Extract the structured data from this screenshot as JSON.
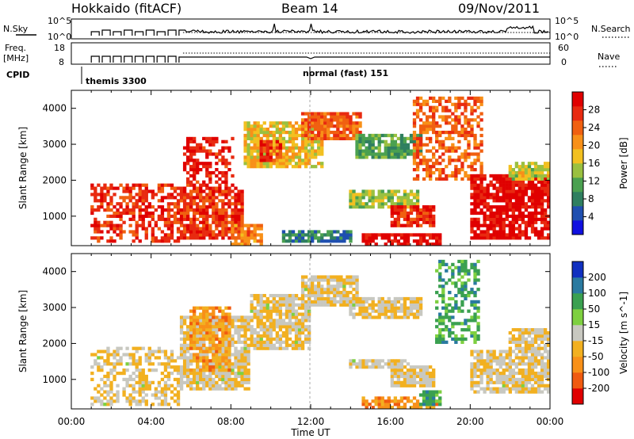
{
  "header": {
    "station": "Hokkaido (fitACF)",
    "beam": "Beam 14",
    "date": "09/Nov/2011"
  },
  "summary_panels": {
    "nsky_label": "N.Sky",
    "nsky_tick_high": "10^5",
    "nsky_tick_low": "10^0",
    "nsearch_tick_high": "10^5",
    "nsearch_tick_low": "10^0",
    "nsearch_label": "N.Search",
    "freq_label_line1": "Freq.",
    "freq_label_line2": "[MHz]",
    "freq_tick_high": "18",
    "freq_tick_low": "8",
    "nave_tick_high": "60",
    "nave_tick_low": "0",
    "nave_label": "Nave",
    "cpid_label": "CPID",
    "cpid_modes": [
      {
        "name": "themis 3300",
        "start_hour": 1.0
      },
      {
        "name": "normal (fast) 151",
        "start_hour": 12.0
      }
    ]
  },
  "chart_data": [
    {
      "type": "heatmap",
      "title": "",
      "ylabel": "Slant Range [km]",
      "xlabel": "",
      "ylim": [
        180,
        4500
      ],
      "yticks": [
        1000,
        2000,
        3000,
        4000
      ],
      "xlim": [
        0,
        24
      ],
      "colorbar": {
        "label": "Power [dB]",
        "range": [
          0,
          32
        ],
        "ticks": [
          "4",
          "8",
          "12",
          "16",
          "20",
          "24",
          "28"
        ],
        "colors": [
          "#1010e0",
          "#1f4fb0",
          "#2f7f60",
          "#4aa050",
          "#9ac040",
          "#f2c020",
          "#f89018",
          "#f06010",
          "#e82a10",
          "#e00000"
        ]
      },
      "features": [
        {
          "t0": 1.0,
          "t1": 5.4,
          "r0": 300,
          "r1": 1900,
          "level": 0.85,
          "sparse": 0.55
        },
        {
          "t0": 5.4,
          "t1": 8.6,
          "r0": 350,
          "r1": 1800,
          "level": 0.85
        },
        {
          "t0": 5.6,
          "t1": 8.2,
          "r0": 1800,
          "r1": 3200,
          "level": 0.9,
          "sparse": 0.5
        },
        {
          "t0": 8.0,
          "t1": 9.6,
          "r0": 200,
          "r1": 800,
          "level": 0.7
        },
        {
          "t0": 8.6,
          "t1": 12.6,
          "r0": 2300,
          "r1": 3600,
          "level": 0.55
        },
        {
          "t0": 9.4,
          "t1": 10.6,
          "r0": 2500,
          "r1": 3100,
          "level": 0.85
        },
        {
          "t0": 11.6,
          "t1": 14.6,
          "r0": 3100,
          "r1": 3900,
          "level": 0.75
        },
        {
          "t0": 10.6,
          "t1": 14.0,
          "r0": 300,
          "r1": 600,
          "level": 0.25
        },
        {
          "t0": 14.0,
          "t1": 17.4,
          "r0": 1200,
          "r1": 1700,
          "level": 0.45
        },
        {
          "t0": 16.0,
          "t1": 18.2,
          "r0": 700,
          "r1": 1300,
          "level": 0.85
        },
        {
          "t0": 14.6,
          "t1": 18.6,
          "r0": 200,
          "r1": 500,
          "level": 0.95
        },
        {
          "t0": 14.2,
          "t1": 17.6,
          "r0": 2600,
          "r1": 3300,
          "level": 0.35
        },
        {
          "t0": 17.2,
          "t1": 20.6,
          "r0": 2000,
          "r1": 4300,
          "level": 0.75,
          "sparse": 0.55
        },
        {
          "t0": 20.0,
          "t1": 24.0,
          "r0": 350,
          "r1": 2200,
          "level": 0.95
        },
        {
          "t0": 22.0,
          "t1": 24.0,
          "r0": 2000,
          "r1": 2500,
          "level": 0.5
        }
      ]
    },
    {
      "type": "heatmap",
      "title": "",
      "ylabel": "Slant Range [km]",
      "xlabel": "Time UT",
      "ylim": [
        180,
        4500
      ],
      "yticks": [
        1000,
        2000,
        3000,
        4000
      ],
      "xlim": [
        0,
        24
      ],
      "xticks": [
        "00:00",
        "04:00",
        "08:00",
        "12:00",
        "16:00",
        "20:00",
        "00:00"
      ],
      "colorbar": {
        "label": "Velocity [m s^-1]",
        "range": [
          -250,
          250
        ],
        "ticks": [
          "-200",
          "-100",
          "-50",
          "-15",
          "15",
          "50",
          "100",
          "200"
        ],
        "colors": [
          "#e00000",
          "#f05a10",
          "#f89018",
          "#f2b020",
          "#c8c8c0",
          "#7ed040",
          "#3aa050",
          "#2a7aa0",
          "#1030c0"
        ]
      },
      "features": [
        {
          "t0": 1.0,
          "t1": 5.4,
          "r0": 300,
          "r1": 1900,
          "level": 0.45,
          "sparse": 0.5
        },
        {
          "t0": 5.4,
          "t1": 9.0,
          "r0": 700,
          "r1": 2800,
          "level": 0.45
        },
        {
          "t0": 6.0,
          "t1": 8.0,
          "r0": 1200,
          "r1": 3000,
          "level": 0.3,
          "sparse": 0.6
        },
        {
          "t0": 9.0,
          "t1": 12.0,
          "r0": 1800,
          "r1": 3400,
          "level": 0.45
        },
        {
          "t0": 11.6,
          "t1": 14.4,
          "r0": 3000,
          "r1": 3900,
          "level": 0.45
        },
        {
          "t0": 14.0,
          "t1": 17.0,
          "r0": 1300,
          "r1": 1600,
          "level": 0.45
        },
        {
          "t0": 14.6,
          "t1": 18.4,
          "r0": 200,
          "r1": 500,
          "level": 0.3
        },
        {
          "t0": 16.0,
          "t1": 18.2,
          "r0": 800,
          "r1": 1400,
          "level": 0.45
        },
        {
          "t0": 14.0,
          "t1": 17.6,
          "r0": 2700,
          "r1": 3300,
          "level": 0.45
        },
        {
          "t0": 17.4,
          "t1": 18.6,
          "r0": 300,
          "r1": 700,
          "level": 0.72
        },
        {
          "t0": 18.2,
          "t1": 20.4,
          "r0": 2000,
          "r1": 4300,
          "level": 0.72,
          "sparse": 0.5
        },
        {
          "t0": 20.0,
          "t1": 24.0,
          "r0": 600,
          "r1": 1800,
          "level": 0.45
        },
        {
          "t0": 22.0,
          "t1": 24.0,
          "r0": 1800,
          "r1": 2400,
          "level": 0.45
        }
      ]
    }
  ]
}
